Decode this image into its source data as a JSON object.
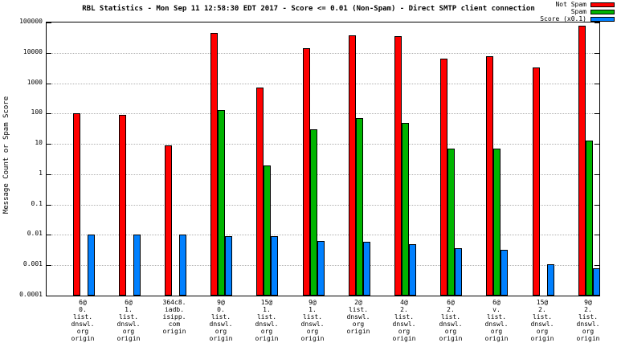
{
  "chart_data": {
    "type": "bar",
    "title": "RBL Statistics - Mon Sep 11 12:58:30 EDT 2017 - Score <= 0.01 (Non-Spam) - Direct SMTP client connection",
    "ylabel": "Message Count or Spam Score",
    "xlabel": "",
    "yscale": "log",
    "ylim": [
      0.0001,
      100000
    ],
    "ytick_labels": [
      "100000",
      "10000",
      "1000",
      "100",
      "10",
      "1",
      "0.1",
      "0.01",
      "0.001",
      "0.0001"
    ],
    "grid": true,
    "legend_position": "top-right",
    "categories": [
      [
        "6@",
        "0.",
        "list.",
        "dnswl.",
        "org",
        "origin"
      ],
      [
        "6@",
        "1.",
        "list.",
        "dnswl.",
        "org",
        "origin"
      ],
      [
        "364c8.",
        "iadb.",
        "isipp.",
        "com",
        "origin"
      ],
      [
        "9@",
        "0.",
        "list.",
        "dnswl.",
        "org",
        "origin"
      ],
      [
        "15@",
        "1.",
        "list.",
        "dnswl.",
        "org",
        "origin"
      ],
      [
        "9@",
        "1.",
        "list.",
        "dnswl.",
        "org",
        "origin"
      ],
      [
        "2@",
        "list.",
        "dnswl.",
        "org",
        "origin"
      ],
      [
        "4@",
        "2.",
        "list.",
        "dnswl.",
        "org",
        "origin"
      ],
      [
        "6@",
        "2.",
        "list.",
        "dnswl.",
        "org",
        "origin"
      ],
      [
        "6@",
        "v.",
        "list.",
        "dnswl.",
        "org",
        "origin"
      ],
      [
        "15@",
        "2.",
        "list.",
        "dnswl.",
        "org",
        "origin"
      ],
      [
        "9@",
        "2.",
        "list.",
        "dnswl.",
        "org",
        "origin"
      ]
    ],
    "series": [
      {
        "name": "Not Spam",
        "color": "#ff0000",
        "values": [
          100,
          90,
          9,
          45000,
          700,
          14000,
          38000,
          36000,
          6500,
          7500,
          3300,
          80000
        ]
      },
      {
        "name": "Spam",
        "color": "#00b400",
        "values": [
          null,
          null,
          null,
          130,
          2,
          30,
          70,
          50,
          7,
          7,
          null,
          13
        ]
      },
      {
        "name": "Score (x0.1)",
        "color": "#0080ff",
        "values": [
          0.01,
          0.01,
          0.01,
          0.009,
          0.009,
          0.0065,
          0.006,
          0.0048,
          0.0037,
          0.0032,
          0.0011,
          0.0008
        ]
      }
    ]
  }
}
